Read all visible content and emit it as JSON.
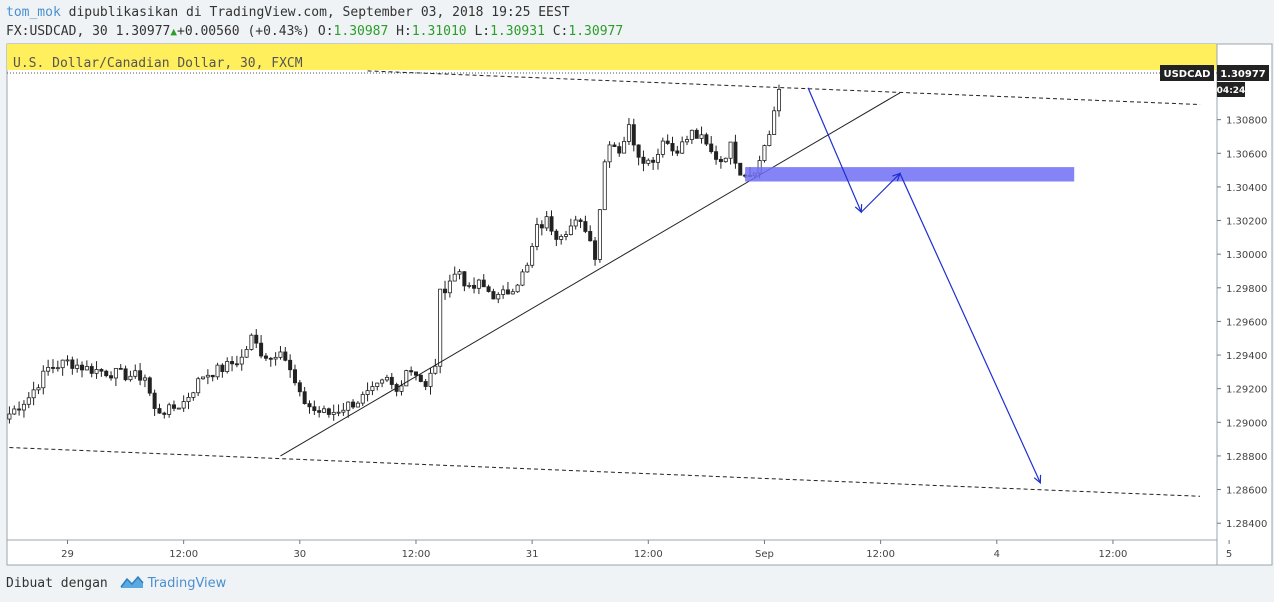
{
  "header": {
    "user": "tom_mok",
    "published_text": " dipublikasikan di TradingView.com, September 03, 2018 19:25 EEST",
    "symbol_text": "FX:USDCAD, 30 1.30977",
    "change_text": "+0.00560 (+0.43%)",
    "o_label": "O:",
    "o_value": "1.30987",
    "h_label": "H:",
    "h_value": "1.31010",
    "l_label": "L:",
    "l_value": "1.30931",
    "c_label": "C:",
    "c_value": "1.30977"
  },
  "chart_title": "U.S. Dollar/Canadian Dollar, 30, FXCM",
  "price_badge": {
    "symbol": "USDCAD",
    "price": "1.30977",
    "countdown": "04:24"
  },
  "footer": {
    "made_with": "Dibuat dengan",
    "brand": "TradingView"
  },
  "colors": {
    "candle": "#222222",
    "zone": "#6f6ff5",
    "arrows": "#1f2fcf",
    "highlight": "#ffef5c",
    "up": "#2a9d2a"
  },
  "chart_data": {
    "type": "candlestick",
    "symbol": "USDCAD",
    "timeframe": "30",
    "ylim": [
      1.283,
      1.3125
    ],
    "y_ticks": [
      "1.30800",
      "1.30600",
      "1.30400",
      "1.30200",
      "1.30000",
      "1.29800",
      "1.29600",
      "1.29400",
      "1.29200",
      "1.29000",
      "1.28800",
      "1.28600",
      "1.28400"
    ],
    "x_ticks": [
      "29",
      "12:00",
      "30",
      "12:00",
      "31",
      "12:00",
      "Sep",
      "12:00",
      "4",
      "12:00",
      "5",
      "12:00"
    ],
    "close_path": [
      [
        0,
        1.2905
      ],
      [
        4,
        1.2915
      ],
      [
        8,
        1.2932
      ],
      [
        12,
        1.2936
      ],
      [
        16,
        1.2932
      ],
      [
        20,
        1.293
      ],
      [
        24,
        1.2928
      ],
      [
        28,
        1.2927
      ],
      [
        30,
        1.2907
      ],
      [
        33,
        1.2907
      ],
      [
        36,
        1.2912
      ],
      [
        40,
        1.2928
      ],
      [
        44,
        1.2932
      ],
      [
        48,
        1.2938
      ],
      [
        50,
        1.295
      ],
      [
        52,
        1.2942
      ],
      [
        54,
        1.2938
      ],
      [
        56,
        1.2945
      ],
      [
        58,
        1.293
      ],
      [
        60,
        1.2915
      ],
      [
        63,
        1.2907
      ],
      [
        66,
        1.2905
      ],
      [
        69,
        1.2909
      ],
      [
        72,
        1.2913
      ],
      [
        75,
        1.2918
      ],
      [
        78,
        1.2925
      ],
      [
        80,
        1.2918
      ],
      [
        82,
        1.2932
      ],
      [
        84,
        1.293
      ],
      [
        86,
        1.292
      ],
      [
        88,
        1.2935
      ],
      [
        89,
        1.2976
      ],
      [
        91,
        1.2985
      ],
      [
        93,
        1.299
      ],
      [
        95,
        1.2978
      ],
      [
        97,
        1.2982
      ],
      [
        99,
        1.2978
      ],
      [
        101,
        1.2974
      ],
      [
        103,
        1.2978
      ],
      [
        105,
        1.2984
      ],
      [
        107,
        1.2992
      ],
      [
        109,
        1.3015
      ],
      [
        111,
        1.302
      ],
      [
        113,
        1.3012
      ],
      [
        115,
        1.3015
      ],
      [
        117,
        1.3018
      ],
      [
        119,
        1.3016
      ],
      [
        121,
        1.3
      ],
      [
        122,
        1.3028
      ],
      [
        123,
        1.3055
      ],
      [
        124,
        1.3068
      ],
      [
        126,
        1.3062
      ],
      [
        128,
        1.3075
      ],
      [
        130,
        1.306
      ],
      [
        132,
        1.3055
      ],
      [
        134,
        1.306
      ],
      [
        135,
        1.307
      ],
      [
        137,
        1.3062
      ],
      [
        139,
        1.3065
      ],
      [
        141,
        1.3072
      ],
      [
        143,
        1.3068
      ],
      [
        145,
        1.306
      ],
      [
        147,
        1.3056
      ],
      [
        149,
        1.3064
      ],
      [
        151,
        1.305
      ],
      [
        153,
        1.3048
      ],
      [
        155,
        1.3055
      ],
      [
        156,
        1.3065
      ],
      [
        157,
        1.3072
      ],
      [
        158,
        1.3085
      ],
      [
        159,
        1.3098
      ]
    ],
    "trendlines": [
      {
        "style": "solid",
        "from": [
          56,
          1.288
        ],
        "to": [
          184,
          1.3096
        ]
      },
      {
        "style": "dashed",
        "from": [
          0,
          1.2885
        ],
        "to": [
          246,
          1.2856
        ]
      },
      {
        "style": "dashed",
        "from": [
          74,
          1.3109
        ],
        "to": [
          246,
          1.3089
        ]
      }
    ],
    "zone": {
      "x0": 152,
      "x1": 220,
      "y_top": 1.305,
      "y_bottom": 1.3045
    },
    "projection": [
      [
        165,
        1.3099
      ],
      [
        176,
        1.3025
      ],
      [
        184,
        1.3048
      ],
      [
        213,
        1.2864
      ]
    ]
  }
}
